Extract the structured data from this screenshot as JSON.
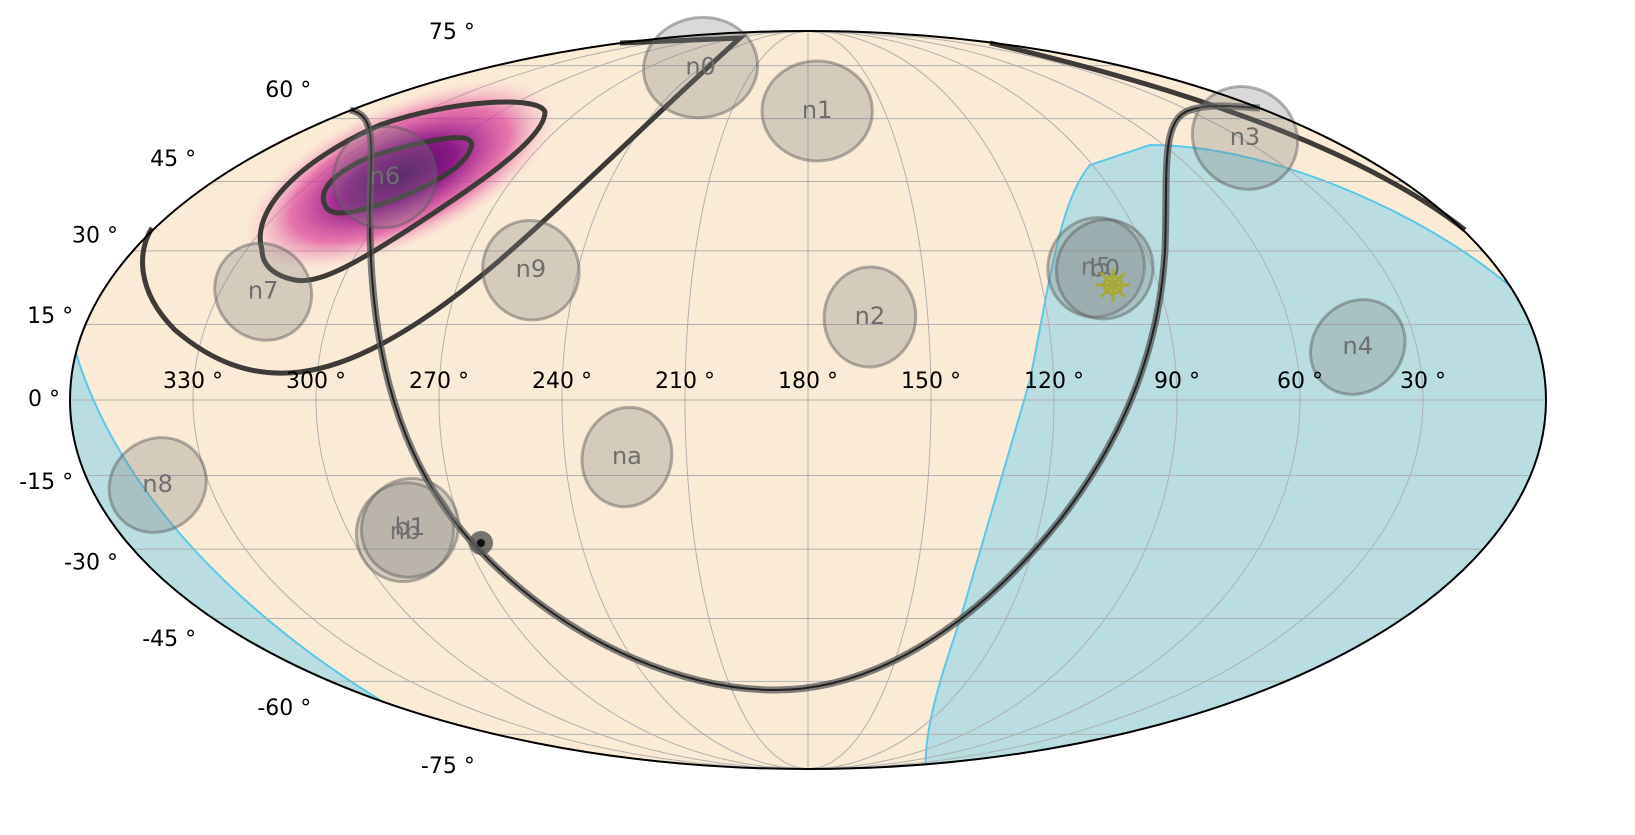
{
  "chart_data": {
    "type": "mollweide",
    "xlim": [
      360,
      0
    ],
    "ylim": [
      -90,
      90
    ],
    "xticks": [
      {
        "value": 330,
        "label": "330 °"
      },
      {
        "value": 300,
        "label": "300 °"
      },
      {
        "value": 270,
        "label": "270 °"
      },
      {
        "value": 240,
        "label": "240 °"
      },
      {
        "value": 210,
        "label": "210 °"
      },
      {
        "value": 180,
        "label": "180 °"
      },
      {
        "value": 150,
        "label": "150 °"
      },
      {
        "value": 120,
        "label": "120 °"
      },
      {
        "value": 90,
        "label": "90 °"
      },
      {
        "value": 60,
        "label": "60 °"
      },
      {
        "value": 30,
        "label": "30 °"
      }
    ],
    "yticks": [
      {
        "value": 75,
        "label": "75 °"
      },
      {
        "value": 60,
        "label": "60 °"
      },
      {
        "value": 45,
        "label": "45 °"
      },
      {
        "value": 30,
        "label": "30 °"
      },
      {
        "value": 15,
        "label": "15 °"
      },
      {
        "value": 0,
        "label": "0 °"
      },
      {
        "value": -15,
        "label": "-15 °"
      },
      {
        "value": -30,
        "label": "-30 °"
      },
      {
        "value": -45,
        "label": "-45 °"
      },
      {
        "value": -60,
        "label": "-60 °"
      },
      {
        "value": -75,
        "label": "-75 °"
      }
    ],
    "grid": true,
    "detectors": [
      {
        "name": "n0",
        "ra": 240.4,
        "dec": 74.4
      },
      {
        "name": "n1",
        "ra": 176.4,
        "dec": 62
      },
      {
        "name": "n2",
        "ra": 164.5,
        "dec": 16.5
      },
      {
        "name": "n3",
        "ra": 28.6,
        "dec": 55.2
      },
      {
        "name": "n4",
        "ra": 44.5,
        "dec": 10.5
      },
      {
        "name": "n5",
        "ra": 104.7,
        "dec": 26.6
      },
      {
        "name": "n6",
        "ra": 309.5,
        "dec": 46
      },
      {
        "name": "n7",
        "ra": 319,
        "dec": 21.6
      },
      {
        "name": "n8",
        "ra": 343,
        "dec": -16.9
      },
      {
        "name": "n9",
        "ra": 252.2,
        "dec": 26
      },
      {
        "name": "na",
        "ra": 224.7,
        "dec": -11.3
      },
      {
        "name": "nb",
        "ra": 285.3,
        "dec": -26.5
      },
      {
        "name": "b0",
        "ra": 102.6,
        "dec": 26.2
      },
      {
        "name": "b1",
        "ra": 283.5,
        "dec": -25.6
      }
    ]
  }
}
